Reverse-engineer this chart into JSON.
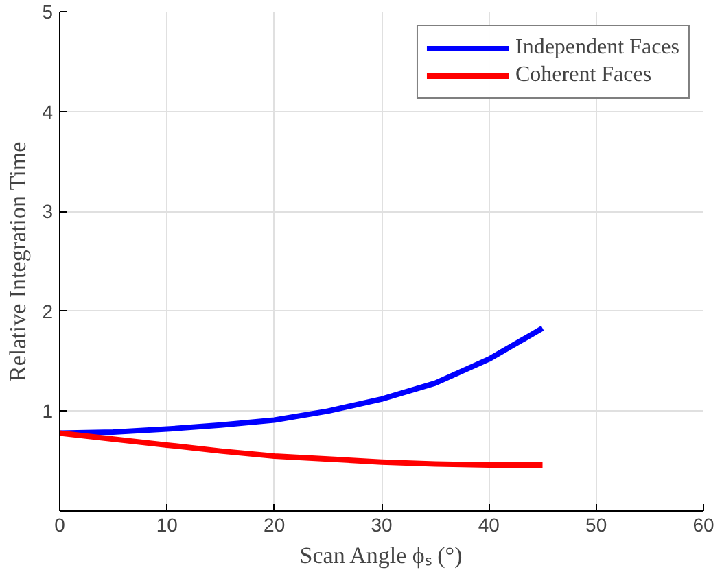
{
  "chart_data": {
    "type": "line",
    "xlabel": "Scan Angle ϕₛ (°)",
    "ylabel": "Relative Integration Time",
    "x": [
      0,
      5,
      10,
      15,
      20,
      25,
      30,
      35,
      40,
      45
    ],
    "series": [
      {
        "name": "Independent Faces",
        "color": "#0000ff",
        "values": [
          0.78,
          0.79,
          0.82,
          0.86,
          0.91,
          1.0,
          1.12,
          1.28,
          1.52,
          1.83
        ]
      },
      {
        "name": "Coherent Faces",
        "color": "#ff0000",
        "values": [
          0.78,
          0.72,
          0.66,
          0.6,
          0.55,
          0.52,
          0.49,
          0.47,
          0.46,
          0.46
        ]
      }
    ],
    "xlim": [
      0,
      60
    ],
    "xticks": [
      0,
      10,
      20,
      30,
      40,
      50,
      60
    ],
    "ylim": [
      0,
      5
    ],
    "yticks": [
      {
        "value": 0,
        "label": null
      },
      1,
      2,
      3,
      4,
      5
    ],
    "grid": true,
    "legend": "top right",
    "line_style": "solid",
    "marker": "none"
  }
}
